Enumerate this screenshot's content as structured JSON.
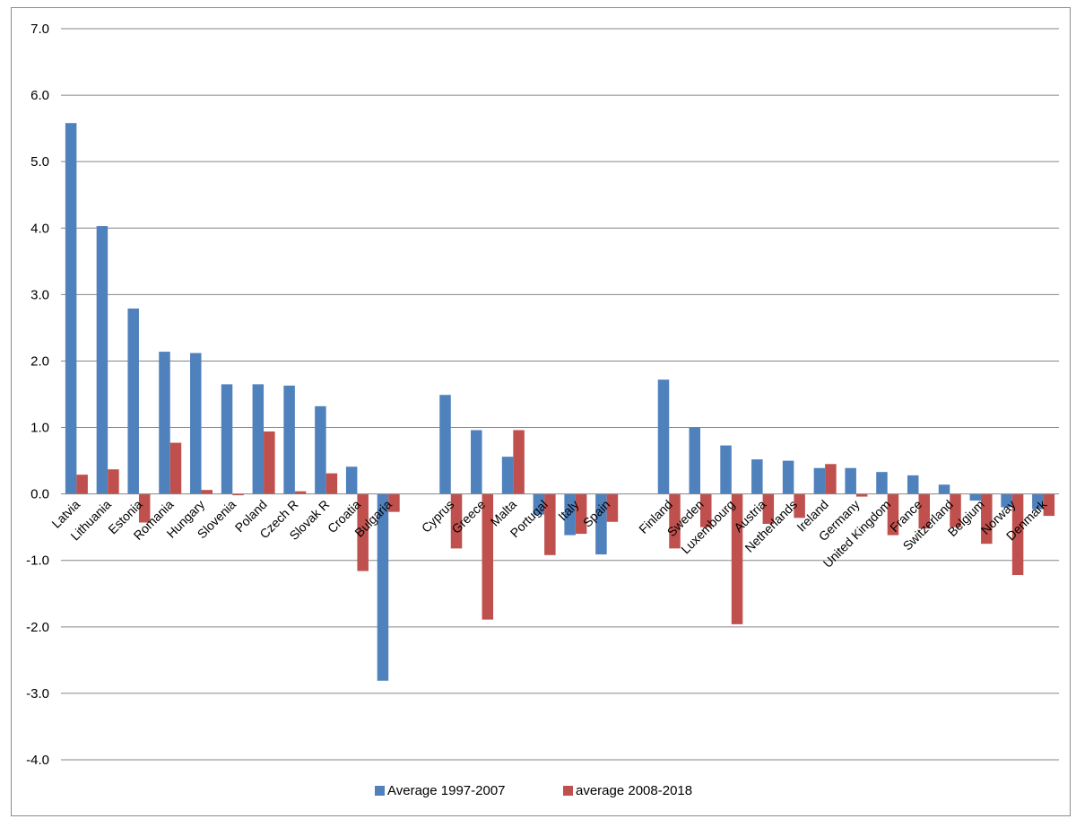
{
  "chart_data": {
    "type": "bar",
    "title": "",
    "xlabel": "",
    "ylabel": "",
    "ylim": [
      -4.0,
      7.0
    ],
    "y_ticks": [
      "7.0",
      "6.0",
      "5.0",
      "4.0",
      "3.0",
      "2.0",
      "1.0",
      "0.0",
      "-1.0",
      "-2.0",
      "-3.0",
      "-4.0"
    ],
    "grid": true,
    "legend_position": "bottom",
    "categories": [
      "Latvia",
      "Lithuania",
      "Estonia",
      "Romania",
      "Hungary",
      "Slovenia",
      "Poland",
      "Czech R",
      "Slovak R",
      "Croatia",
      "Bulgaria",
      "",
      "Cyprus",
      "Greece",
      "Malta",
      "Portugal",
      "Italy",
      "Spain",
      "",
      "Finland",
      "Sweden",
      "Luxembourg",
      "Austria",
      "Netherlands",
      "Ireland",
      "Germany",
      "United Kingdom",
      "France",
      "Switzerland",
      "Belgium",
      "Norway",
      "Denmark"
    ],
    "series": [
      {
        "name": "Average 1997-2007",
        "color": "#4f81bd",
        "values": [
          5.58,
          4.03,
          2.79,
          2.14,
          2.12,
          1.65,
          1.65,
          1.63,
          1.32,
          0.41,
          -2.81,
          null,
          1.49,
          0.96,
          0.56,
          -0.31,
          -0.62,
          -0.91,
          null,
          1.72,
          1.0,
          0.73,
          0.52,
          0.5,
          0.39,
          0.39,
          0.33,
          0.28,
          0.14,
          -0.1,
          -0.2,
          -0.23
        ]
      },
      {
        "name": "average 2008-2018",
        "color": "#c0504d",
        "values": [
          0.29,
          0.37,
          -0.43,
          0.77,
          0.06,
          -0.02,
          0.94,
          0.04,
          0.31,
          -1.16,
          -0.27,
          null,
          -0.82,
          -1.89,
          0.96,
          -0.92,
          -0.6,
          -0.42,
          null,
          -0.82,
          -0.5,
          -1.96,
          -0.45,
          -0.36,
          0.45,
          -0.04,
          -0.62,
          -0.52,
          -0.5,
          -0.75,
          -1.22,
          -0.33
        ]
      }
    ]
  }
}
